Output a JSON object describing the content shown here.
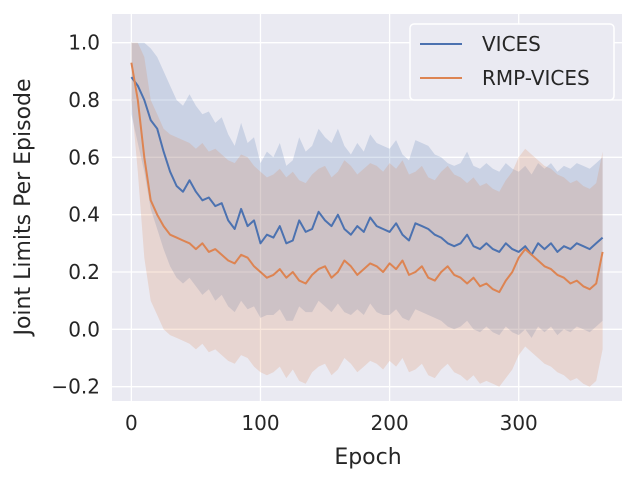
{
  "chart_data": {
    "type": "line",
    "title": "",
    "xlabel": "Epoch",
    "ylabel": "Joint Limits Per Episode",
    "xlim": [
      -15,
      380
    ],
    "ylim": [
      -0.25,
      1.1
    ],
    "xticks": [
      0,
      100,
      200,
      300
    ],
    "xtick_labels": [
      "0",
      "100",
      "200",
      "300"
    ],
    "yticks": [
      -0.2,
      0.0,
      0.2,
      0.4,
      0.6,
      0.8,
      1.0
    ],
    "ytick_labels": [
      "−0.2",
      "0.0",
      "0.2",
      "0.4",
      "0.6",
      "0.8",
      "1.0"
    ],
    "grid": true,
    "legend_position": "top-right",
    "background_color": "#eaeaf2",
    "series": [
      {
        "name": "VICES",
        "color": "#4c72b0",
        "x": [
          0,
          5,
          10,
          15,
          20,
          25,
          30,
          35,
          40,
          45,
          50,
          55,
          60,
          65,
          70,
          75,
          80,
          85,
          90,
          95,
          100,
          105,
          110,
          115,
          120,
          125,
          130,
          135,
          140,
          145,
          150,
          155,
          160,
          165,
          170,
          175,
          180,
          185,
          190,
          195,
          200,
          205,
          210,
          215,
          220,
          225,
          230,
          235,
          240,
          245,
          250,
          255,
          260,
          265,
          270,
          275,
          280,
          285,
          290,
          295,
          300,
          305,
          310,
          315,
          320,
          325,
          330,
          335,
          340,
          345,
          350,
          355,
          360,
          365
        ],
        "y": [
          0.88,
          0.85,
          0.8,
          0.73,
          0.7,
          0.62,
          0.55,
          0.5,
          0.48,
          0.52,
          0.48,
          0.45,
          0.46,
          0.43,
          0.44,
          0.38,
          0.35,
          0.42,
          0.36,
          0.38,
          0.3,
          0.33,
          0.32,
          0.36,
          0.3,
          0.31,
          0.38,
          0.34,
          0.35,
          0.41,
          0.38,
          0.36,
          0.4,
          0.35,
          0.33,
          0.36,
          0.34,
          0.39,
          0.36,
          0.35,
          0.34,
          0.37,
          0.33,
          0.31,
          0.37,
          0.36,
          0.35,
          0.33,
          0.32,
          0.3,
          0.29,
          0.3,
          0.33,
          0.29,
          0.28,
          0.3,
          0.28,
          0.27,
          0.3,
          0.28,
          0.27,
          0.29,
          0.26,
          0.3,
          0.28,
          0.3,
          0.27,
          0.29,
          0.28,
          0.3,
          0.29,
          0.28,
          0.3,
          0.32
        ],
        "band_lower": [
          0.75,
          0.65,
          0.55,
          0.42,
          0.35,
          0.28,
          0.22,
          0.18,
          0.16,
          0.18,
          0.15,
          0.12,
          0.14,
          0.1,
          0.12,
          0.08,
          0.06,
          0.1,
          0.07,
          0.08,
          0.04,
          0.05,
          0.05,
          0.07,
          0.03,
          0.03,
          0.08,
          0.06,
          0.06,
          0.1,
          0.08,
          0.06,
          0.09,
          0.06,
          0.05,
          0.07,
          0.05,
          0.09,
          0.06,
          0.05,
          0.05,
          0.07,
          0.04,
          0.03,
          0.07,
          0.06,
          0.05,
          0.04,
          0.03,
          0.01,
          0.0,
          0.01,
          0.03,
          0.0,
          -0.01,
          0.01,
          -0.01,
          -0.02,
          0.01,
          -0.01,
          -0.02,
          0.0,
          -0.03,
          0.01,
          -0.01,
          0.01,
          -0.02,
          0.0,
          -0.01,
          0.01,
          0.0,
          -0.01,
          0.01,
          0.03
        ],
        "band_upper": [
          1.0,
          1.0,
          1.0,
          0.98,
          0.95,
          0.9,
          0.85,
          0.8,
          0.78,
          0.82,
          0.78,
          0.75,
          0.76,
          0.72,
          0.74,
          0.68,
          0.64,
          0.72,
          0.65,
          0.67,
          0.58,
          0.62,
          0.6,
          0.65,
          0.57,
          0.59,
          0.67,
          0.62,
          0.64,
          0.7,
          0.67,
          0.65,
          0.7,
          0.64,
          0.61,
          0.65,
          0.62,
          0.68,
          0.65,
          0.64,
          0.63,
          0.66,
          0.61,
          0.59,
          0.66,
          0.65,
          0.64,
          0.61,
          0.6,
          0.58,
          0.57,
          0.58,
          0.62,
          0.57,
          0.56,
          0.58,
          0.56,
          0.55,
          0.58,
          0.56,
          0.55,
          0.57,
          0.54,
          0.58,
          0.56,
          0.58,
          0.55,
          0.57,
          0.56,
          0.58,
          0.57,
          0.56,
          0.58,
          0.6
        ]
      },
      {
        "name": "RMP-VICES",
        "color": "#dd8452",
        "x": [
          0,
          5,
          10,
          15,
          20,
          25,
          30,
          35,
          40,
          45,
          50,
          55,
          60,
          65,
          70,
          75,
          80,
          85,
          90,
          95,
          100,
          105,
          110,
          115,
          120,
          125,
          130,
          135,
          140,
          145,
          150,
          155,
          160,
          165,
          170,
          175,
          180,
          185,
          190,
          195,
          200,
          205,
          210,
          215,
          220,
          225,
          230,
          235,
          240,
          245,
          250,
          255,
          260,
          265,
          270,
          275,
          280,
          285,
          290,
          295,
          300,
          305,
          310,
          315,
          320,
          325,
          330,
          335,
          340,
          345,
          350,
          355,
          360,
          365
        ],
        "y": [
          0.93,
          0.8,
          0.6,
          0.45,
          0.4,
          0.36,
          0.33,
          0.32,
          0.31,
          0.3,
          0.28,
          0.3,
          0.27,
          0.28,
          0.26,
          0.24,
          0.23,
          0.26,
          0.25,
          0.22,
          0.2,
          0.18,
          0.19,
          0.21,
          0.18,
          0.2,
          0.17,
          0.16,
          0.19,
          0.21,
          0.22,
          0.18,
          0.2,
          0.24,
          0.22,
          0.19,
          0.21,
          0.23,
          0.22,
          0.2,
          0.23,
          0.21,
          0.24,
          0.19,
          0.2,
          0.22,
          0.18,
          0.17,
          0.2,
          0.22,
          0.19,
          0.18,
          0.16,
          0.18,
          0.15,
          0.16,
          0.14,
          0.13,
          0.17,
          0.2,
          0.25,
          0.28,
          0.26,
          0.24,
          0.22,
          0.21,
          0.19,
          0.18,
          0.16,
          0.17,
          0.15,
          0.14,
          0.16,
          0.27
        ],
        "band_lower": [
          0.8,
          0.55,
          0.25,
          0.1,
          0.05,
          0.0,
          -0.02,
          -0.03,
          -0.04,
          -0.05,
          -0.07,
          -0.05,
          -0.08,
          -0.07,
          -0.09,
          -0.11,
          -0.12,
          -0.09,
          -0.1,
          -0.13,
          -0.15,
          -0.16,
          -0.15,
          -0.13,
          -0.17,
          -0.14,
          -0.18,
          -0.19,
          -0.15,
          -0.13,
          -0.12,
          -0.16,
          -0.14,
          -0.1,
          -0.12,
          -0.15,
          -0.13,
          -0.11,
          -0.12,
          -0.14,
          -0.11,
          -0.13,
          -0.1,
          -0.15,
          -0.14,
          -0.12,
          -0.16,
          -0.17,
          -0.14,
          -0.12,
          -0.15,
          -0.16,
          -0.18,
          -0.16,
          -0.19,
          -0.18,
          -0.19,
          -0.2,
          -0.17,
          -0.14,
          -0.09,
          -0.06,
          -0.08,
          -0.1,
          -0.12,
          -0.13,
          -0.15,
          -0.16,
          -0.18,
          -0.17,
          -0.19,
          -0.2,
          -0.18,
          -0.07
        ],
        "band_upper": [
          1.0,
          1.0,
          0.95,
          0.8,
          0.75,
          0.7,
          0.68,
          0.67,
          0.66,
          0.65,
          0.63,
          0.65,
          0.62,
          0.63,
          0.61,
          0.59,
          0.58,
          0.61,
          0.6,
          0.57,
          0.55,
          0.53,
          0.54,
          0.56,
          0.53,
          0.55,
          0.52,
          0.51,
          0.54,
          0.56,
          0.57,
          0.53,
          0.55,
          0.59,
          0.57,
          0.54,
          0.56,
          0.58,
          0.57,
          0.55,
          0.58,
          0.56,
          0.59,
          0.54,
          0.55,
          0.57,
          0.53,
          0.52,
          0.55,
          0.57,
          0.54,
          0.53,
          0.51,
          0.53,
          0.5,
          0.51,
          0.49,
          0.48,
          0.52,
          0.55,
          0.6,
          0.63,
          0.61,
          0.59,
          0.57,
          0.56,
          0.54,
          0.53,
          0.51,
          0.52,
          0.5,
          0.49,
          0.51,
          0.62
        ]
      }
    ]
  }
}
